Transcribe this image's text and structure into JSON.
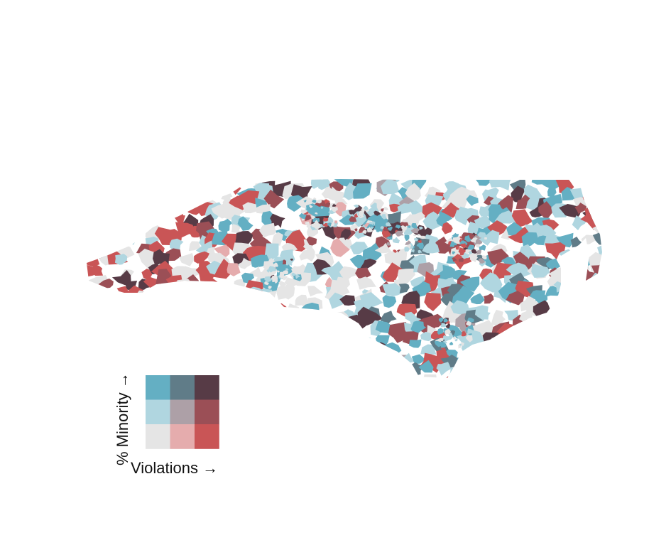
{
  "legend": {
    "y_label": "% Minority →",
    "x_label": "Violations →",
    "grid": [
      [
        "#64AFC3",
        "#607C88",
        "#573B46"
      ],
      [
        "#B0D6E0",
        "#ADA0A7",
        "#9B4F56"
      ],
      [
        "#E5E5E5",
        "#E5ACAD",
        "#C95556"
      ]
    ]
  },
  "palette": {
    "gray": "#E5E5E5",
    "light_blue": "#B0D6E0",
    "blue": "#64AFC3",
    "pink": "#E5ACAD",
    "red": "#C95556",
    "maroon": "#9B4F56",
    "mauve": "#ADA0A7",
    "slate": "#607C88",
    "dark": "#573B46"
  },
  "map": {
    "region": "North Carolina",
    "fill_classes": [
      "gray",
      "light_blue",
      "blue",
      "pink",
      "red",
      "maroon",
      "mauve",
      "slate",
      "dark"
    ]
  }
}
